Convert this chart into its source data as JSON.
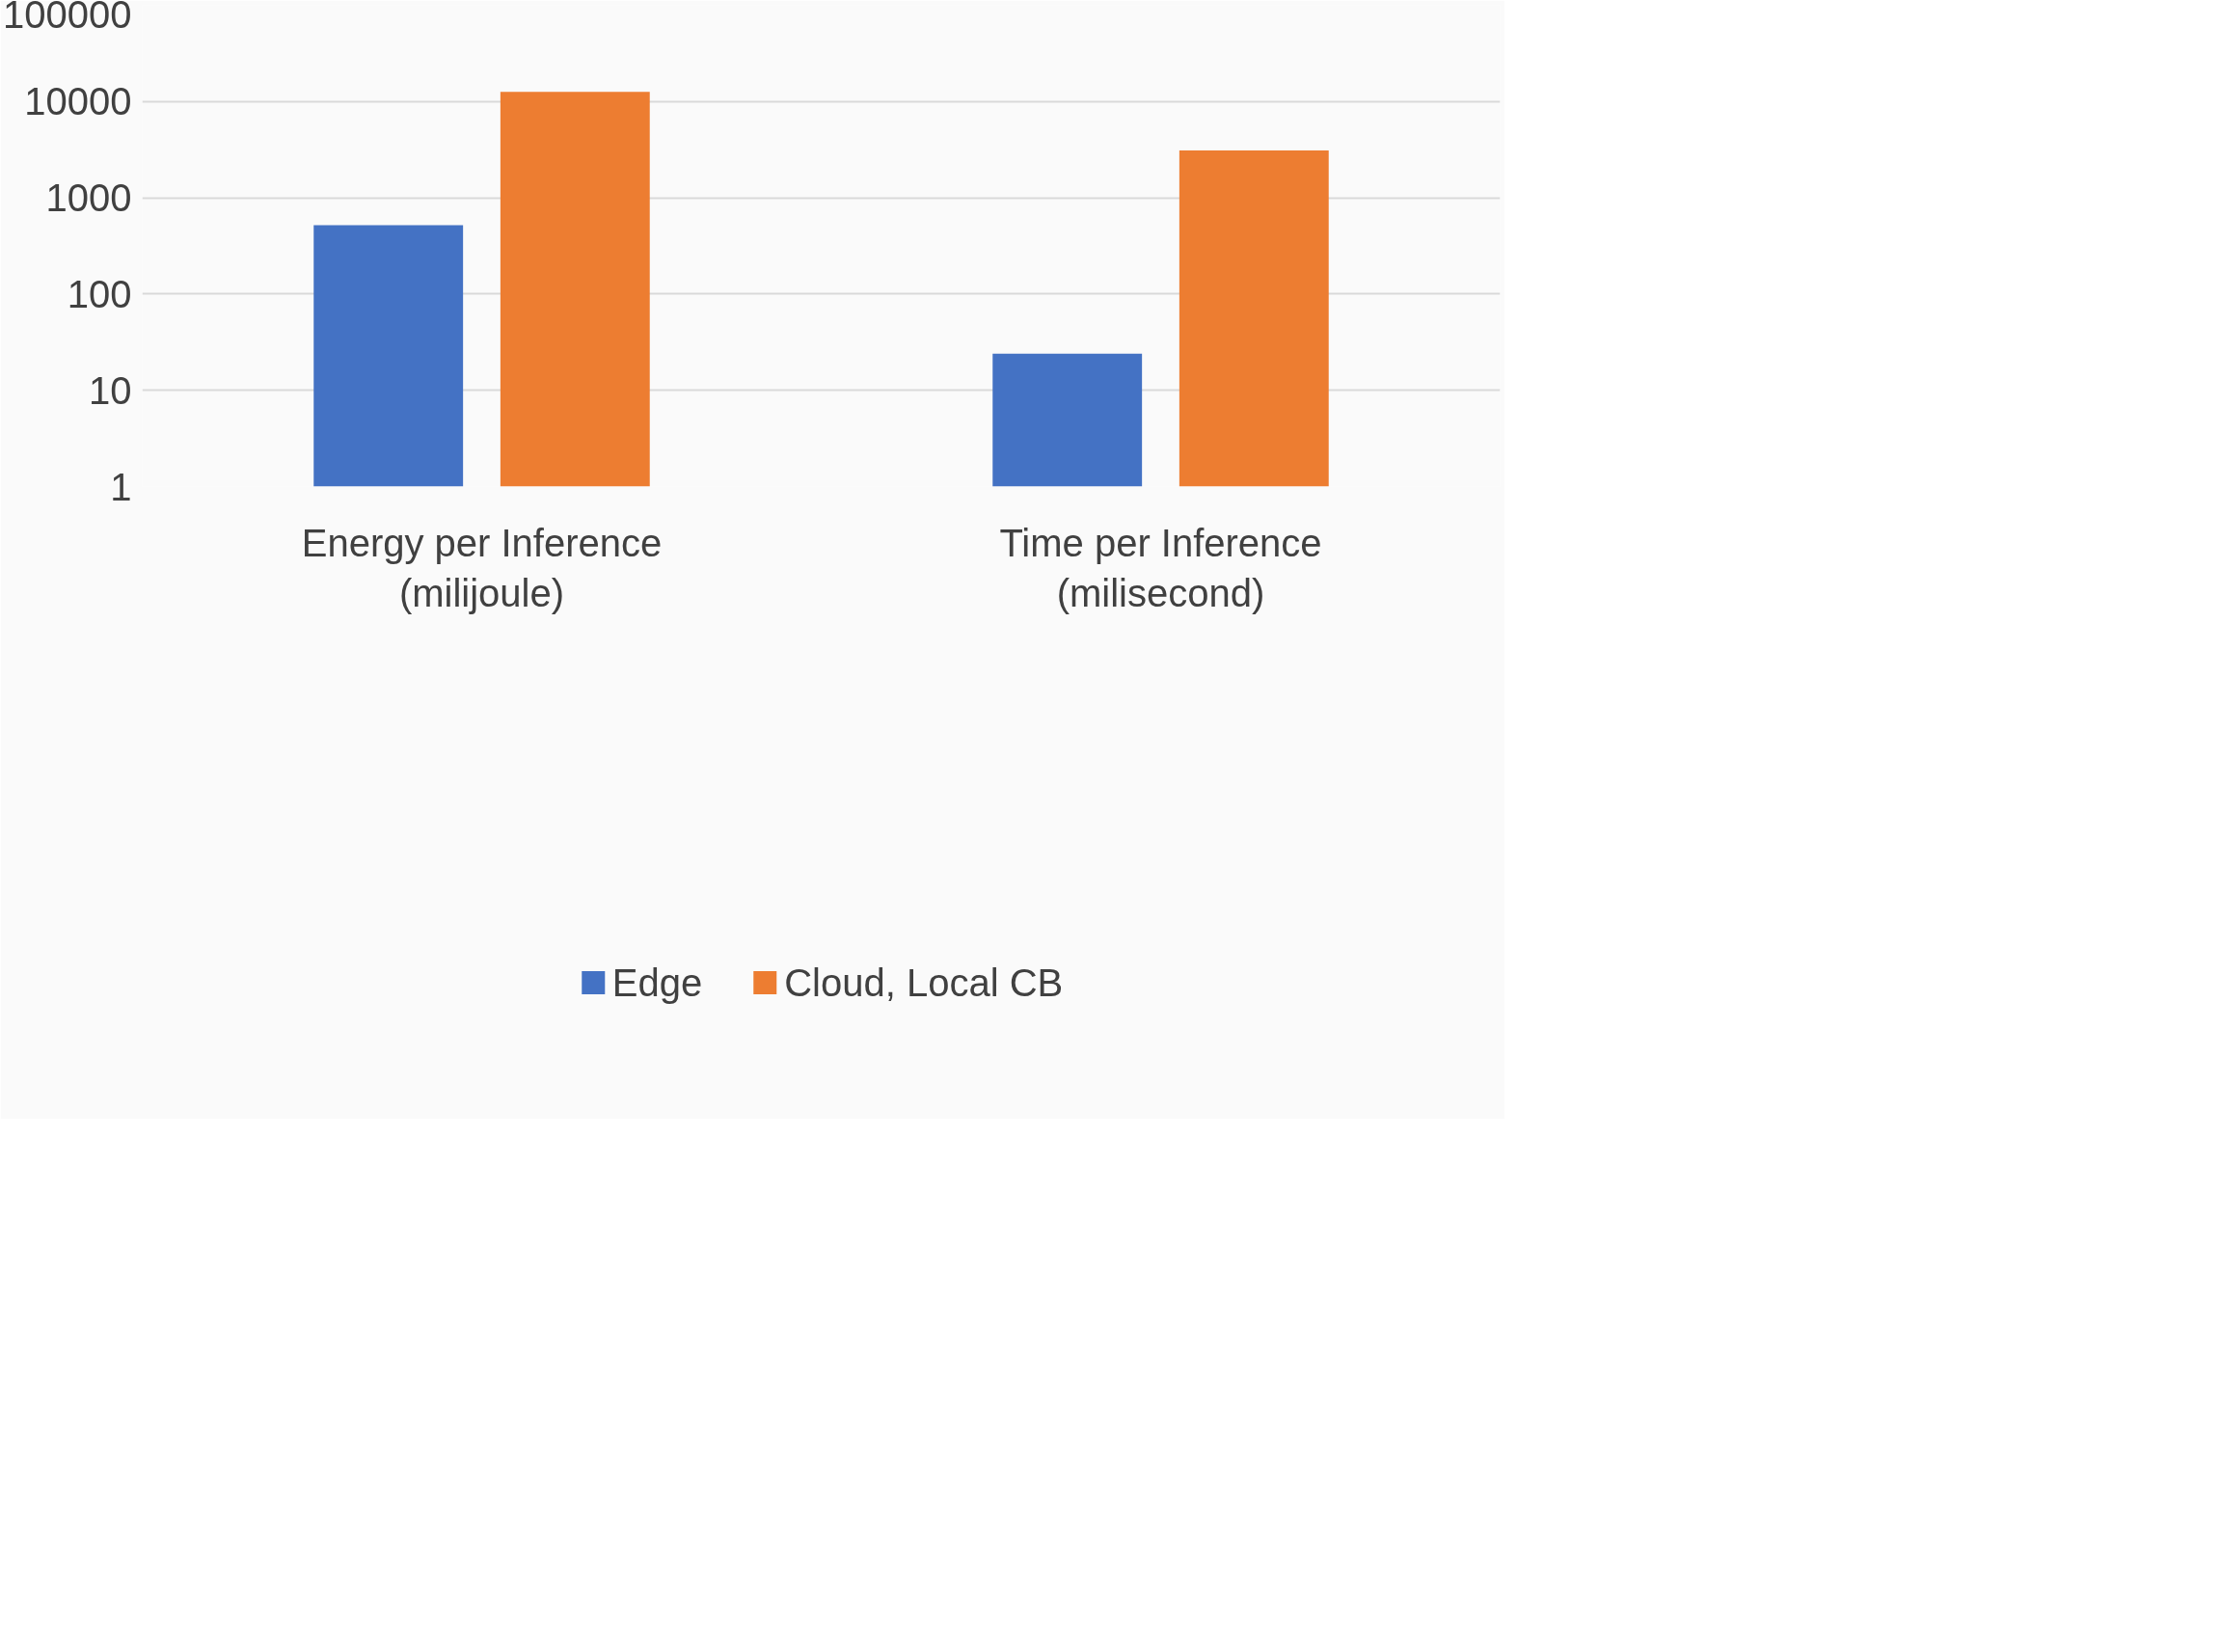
{
  "chart_data": {
    "type": "bar",
    "categories": [
      "Energy per Inference\n(milijoule)",
      "Time per Inference\n(milisecond)"
    ],
    "series": [
      {
        "name": "Edge",
        "color": "#4472c4",
        "values": [
          520,
          24
        ]
      },
      {
        "name": "Cloud, Local CB",
        "color": "#ed7d31",
        "values": [
          12600,
          3100
        ]
      }
    ],
    "log": true,
    "ylim": [
      1,
      100000
    ],
    "yticks": [
      1,
      10,
      100,
      1000,
      10000,
      100000
    ],
    "grid": "y",
    "legend": "bottom"
  }
}
